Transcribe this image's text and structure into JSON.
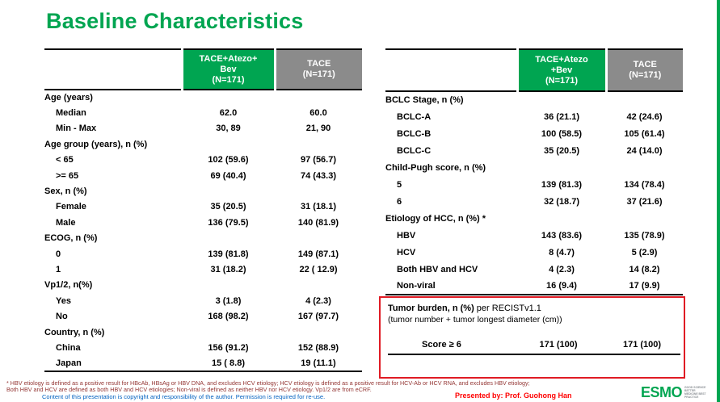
{
  "title": "Baseline Characteristics",
  "colors": {
    "green": "#00A551",
    "gray": "#8B8B8B",
    "red": "#E01B24",
    "dark_red": "#943634",
    "blue": "#0563C1",
    "presented_red": "#FF0000"
  },
  "left_table": {
    "headers": [
      "TACE+Atezo+\nBev\n(N=171)",
      "TACE\n(N=171)"
    ],
    "rows": [
      {
        "label": "Age (years)",
        "cat": true,
        "v1": "",
        "v2": ""
      },
      {
        "label": "Median",
        "v1": "62.0",
        "v2": "60.0"
      },
      {
        "label": "Min - Max",
        "v1": "30, 89",
        "v2": "21, 90"
      },
      {
        "label": "Age group (years), n (%)",
        "cat": true,
        "v1": "",
        "v2": ""
      },
      {
        "label": "< 65",
        "v1": "102 (59.6)",
        "v2": "97 (56.7)"
      },
      {
        "label": ">= 65",
        "v1": "69 (40.4)",
        "v2": "74 (43.3)"
      },
      {
        "label": "Sex, n (%)",
        "cat": true,
        "v1": "",
        "v2": ""
      },
      {
        "label": "Female",
        "v1": "35 (20.5)",
        "v2": "31 (18.1)"
      },
      {
        "label": "Male",
        "v1": "136 (79.5)",
        "v2": "140 (81.9)"
      },
      {
        "label": "ECOG, n (%)",
        "cat": true,
        "v1": "",
        "v2": ""
      },
      {
        "label": "0",
        "v1": "139 (81.8)",
        "v2": "149 (87.1)"
      },
      {
        "label": "1",
        "v1": "31 (18.2)",
        "v2": "22 ( 12.9)"
      },
      {
        "label": "Vp1/2, n(%)",
        "cat": true,
        "v1": "",
        "v2": ""
      },
      {
        "label": "Yes",
        "v1": "3 (1.8)",
        "v2": "4 (2.3)"
      },
      {
        "label": "No",
        "v1": "168 (98.2)",
        "v2": "167 (97.7)"
      },
      {
        "label": "Country, n (%)",
        "cat": true,
        "v1": "",
        "v2": ""
      },
      {
        "label": "China",
        "v1": "156 (91.2)",
        "v2": "152 (88.9)"
      },
      {
        "label": "Japan",
        "v1": "15 ( 8.8)",
        "v2": "19 (11.1)"
      }
    ]
  },
  "right_table": {
    "headers": [
      "TACE+Atezo\n+Bev\n(N=171)",
      "TACE\n(N=171)"
    ],
    "rows": [
      {
        "label": "BCLC Stage, n (%)",
        "cat": true,
        "v1": "",
        "v2": ""
      },
      {
        "label": "BCLC-A",
        "v1": "36 (21.1)",
        "v2": "42 (24.6)"
      },
      {
        "label": "BCLC-B",
        "v1": "100 (58.5)",
        "v2": "105 (61.4)"
      },
      {
        "label": "BCLC-C",
        "v1": "35 (20.5)",
        "v2": "24 (14.0)"
      },
      {
        "label": "Child-Pugh score, n (%)",
        "cat": true,
        "v1": "",
        "v2": ""
      },
      {
        "label": "5",
        "v1": "139 (81.3)",
        "v2": "134 (78.4)"
      },
      {
        "label": "6",
        "v1": "32 (18.7)",
        "v2": "37 (21.6)"
      },
      {
        "label": "Etiology of HCC, n (%) *",
        "cat": true,
        "v1": "",
        "v2": ""
      },
      {
        "label": "HBV",
        "v1": "143 (83.6)",
        "v2": "135 (78.9)"
      },
      {
        "label": "HCV",
        "v1": "8 (4.7)",
        "v2": "5 (2.9)"
      },
      {
        "label": "Both HBV and HCV",
        "v1": "4 (2.3)",
        "v2": "14 (8.2)"
      },
      {
        "label": "Non-viral",
        "v1": "16 (9.4)",
        "v2": "17 (9.9)"
      }
    ]
  },
  "tumor_burden": {
    "title_bold": "Tumor burden, n (%)",
    "title_normal": " per RECISTv1.1",
    "subtitle": "(tumor number + tumor longest diameter (cm))",
    "row": {
      "label": "Score ≥ 6",
      "v1": "171 (100)",
      "v2": "171 (100)"
    }
  },
  "footer": {
    "footnote_line1": "* HBV etiology is defined as a positive result for HBcAb, HBsAg or HBV DNA, and excludes HCV etiology; HCV etiology is defined as a positive result for HCV-Ab or HCV RNA, and excludes HBV etiology;",
    "footnote_line2": "Both HBV and HCV are defined as both HBV and HCV etiologies; Non-viral is defined as neither HBV nor HCV etiology. Vp1/2 are from eCRF.",
    "copyright": "Content of this presentation is copyright and responsibility of the author. Permission is required for re-use.",
    "presented_by": "Presented by: Prof. Guohong Han",
    "logo_text": "ESMO",
    "logo_tagline": "Good science Better medicine Best practice"
  }
}
